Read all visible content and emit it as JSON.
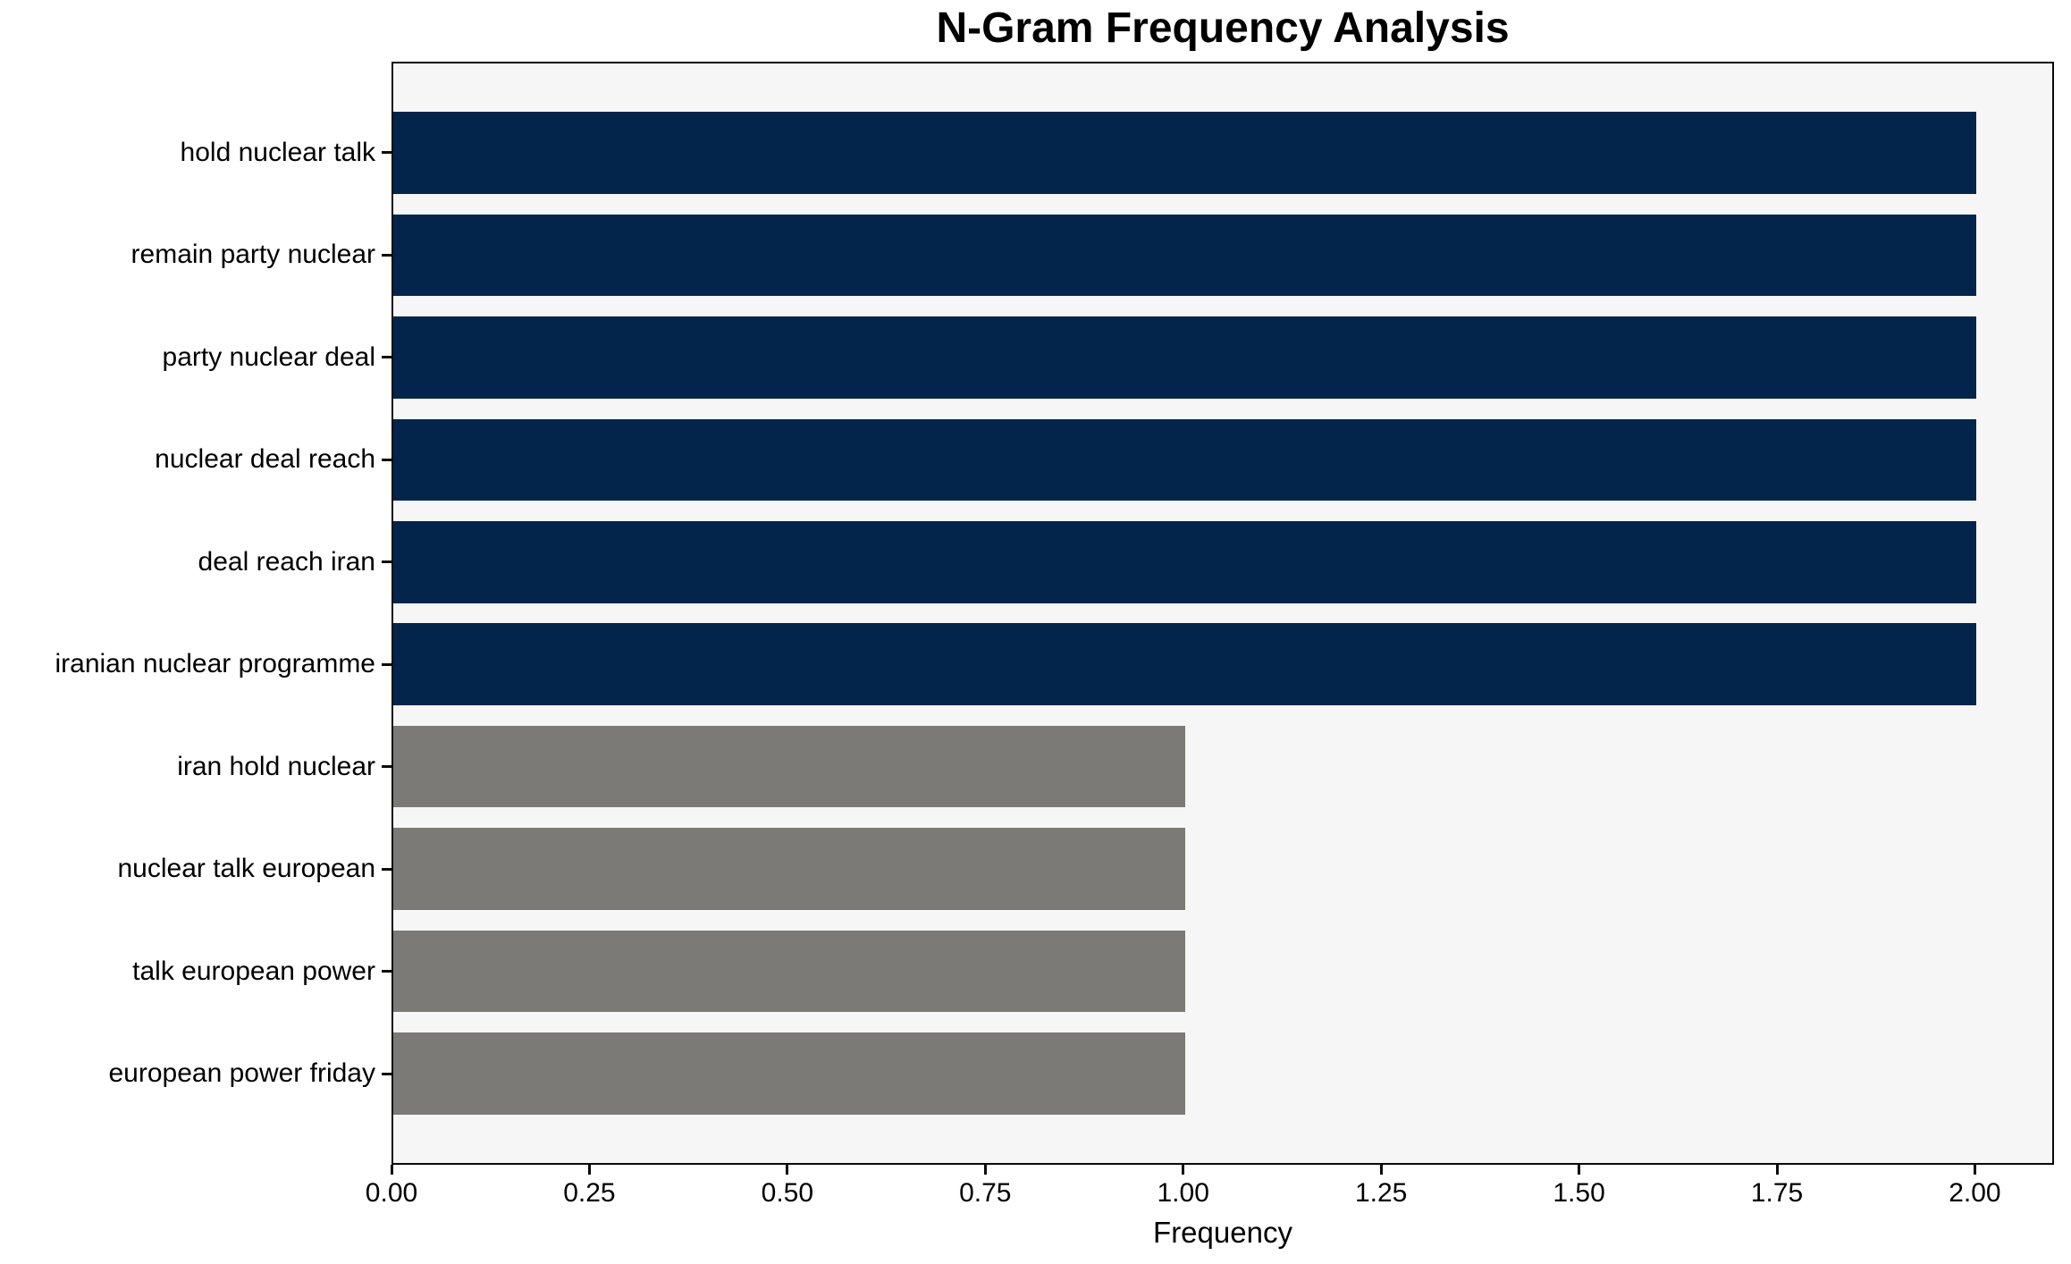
{
  "chart_data": {
    "type": "bar",
    "orientation": "horizontal",
    "title": "N-Gram Frequency Analysis",
    "xlabel": "Frequency",
    "ylabel": "",
    "categories": [
      "hold nuclear talk",
      "remain party nuclear",
      "party nuclear deal",
      "nuclear deal reach",
      "deal reach iran",
      "iranian nuclear programme",
      "iran hold nuclear",
      "nuclear talk european",
      "talk european power",
      "european power friday"
    ],
    "values": [
      2,
      2,
      2,
      2,
      2,
      2,
      1,
      1,
      1,
      1
    ],
    "bar_colors": [
      "#03254c",
      "#03254c",
      "#03254c",
      "#03254c",
      "#03254c",
      "#03254c",
      "#7b7a76",
      "#7b7a76",
      "#7b7a76",
      "#7b7a76"
    ],
    "xlim": [
      0,
      2.1
    ],
    "xticks": [
      0,
      0.25,
      0.5,
      0.75,
      1.0,
      1.25,
      1.5,
      1.75,
      2.0
    ],
    "xtick_labels": [
      "0.00",
      "0.25",
      "0.50",
      "0.75",
      "1.00",
      "1.25",
      "1.50",
      "1.75",
      "2.00"
    ],
    "grid": false,
    "legend_position": "none"
  },
  "colors": {
    "bar_primary": "#03254c",
    "bar_secondary": "#7b7a76",
    "plot_background": "#f6f6f7",
    "figure_background": "#ffffff",
    "axis": "#0a0a0a",
    "text": "#000000"
  }
}
